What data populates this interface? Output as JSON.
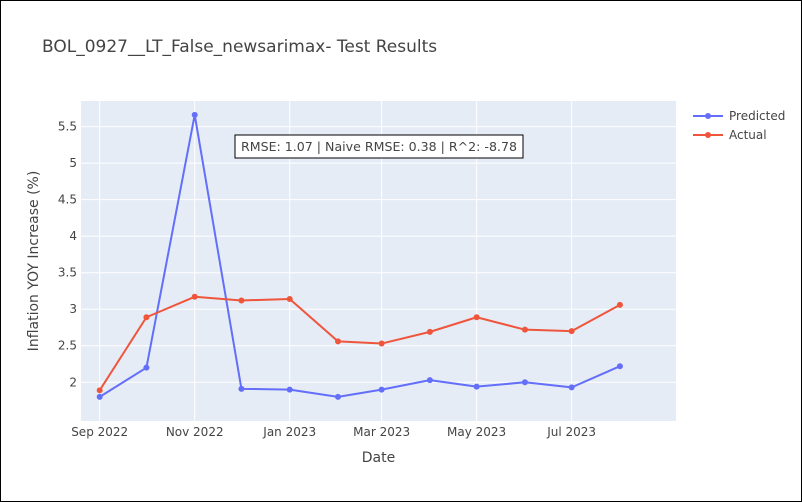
{
  "chart_data": {
    "type": "line",
    "title": "BOL_0927__LT_False_newsarimax- Test Results",
    "xlabel": "Date",
    "ylabel": "Inflation YOY Increase (%)",
    "x": [
      "2022-09-01",
      "2022-10-01",
      "2022-11-01",
      "2022-12-01",
      "2023-01-01",
      "2023-02-01",
      "2023-03-01",
      "2023-04-01",
      "2023-05-01",
      "2023-06-01",
      "2023-07-01",
      "2023-08-01"
    ],
    "x_ticks": [
      {
        "date": "2022-09-01",
        "label": "Sep 2022"
      },
      {
        "date": "2022-11-01",
        "label": "Nov 2022"
      },
      {
        "date": "2023-01-01",
        "label": "Jan 2023"
      },
      {
        "date": "2023-03-01",
        "label": "Mar 2023"
      },
      {
        "date": "2023-05-01",
        "label": "May 2023"
      },
      {
        "date": "2023-07-01",
        "label": "Jul 2023"
      }
    ],
    "xlim": [
      "2022-08-20",
      "2023-09-06"
    ],
    "y_ticks": [
      2,
      2.5,
      3,
      3.5,
      4,
      4.5,
      5,
      5.5
    ],
    "ylim": [
      1.47,
      5.85
    ],
    "series": [
      {
        "name": "Predicted",
        "color": "#636efa",
        "values": [
          1.8,
          2.2,
          5.66,
          1.91,
          1.9,
          1.8,
          1.9,
          2.03,
          1.94,
          2.0,
          1.93,
          2.22
        ]
      },
      {
        "name": "Actual",
        "color": "#ef553b",
        "values": [
          1.89,
          2.89,
          3.17,
          3.12,
          3.14,
          2.56,
          2.53,
          2.69,
          2.89,
          2.72,
          2.7,
          3.06
        ]
      }
    ],
    "annotation": "RMSE: 1.07 | Naive RMSE: 0.38 | R^2: -8.78",
    "grid": true,
    "legend_position": "top-right",
    "plot_bgcolor": "#e5ecf6"
  }
}
